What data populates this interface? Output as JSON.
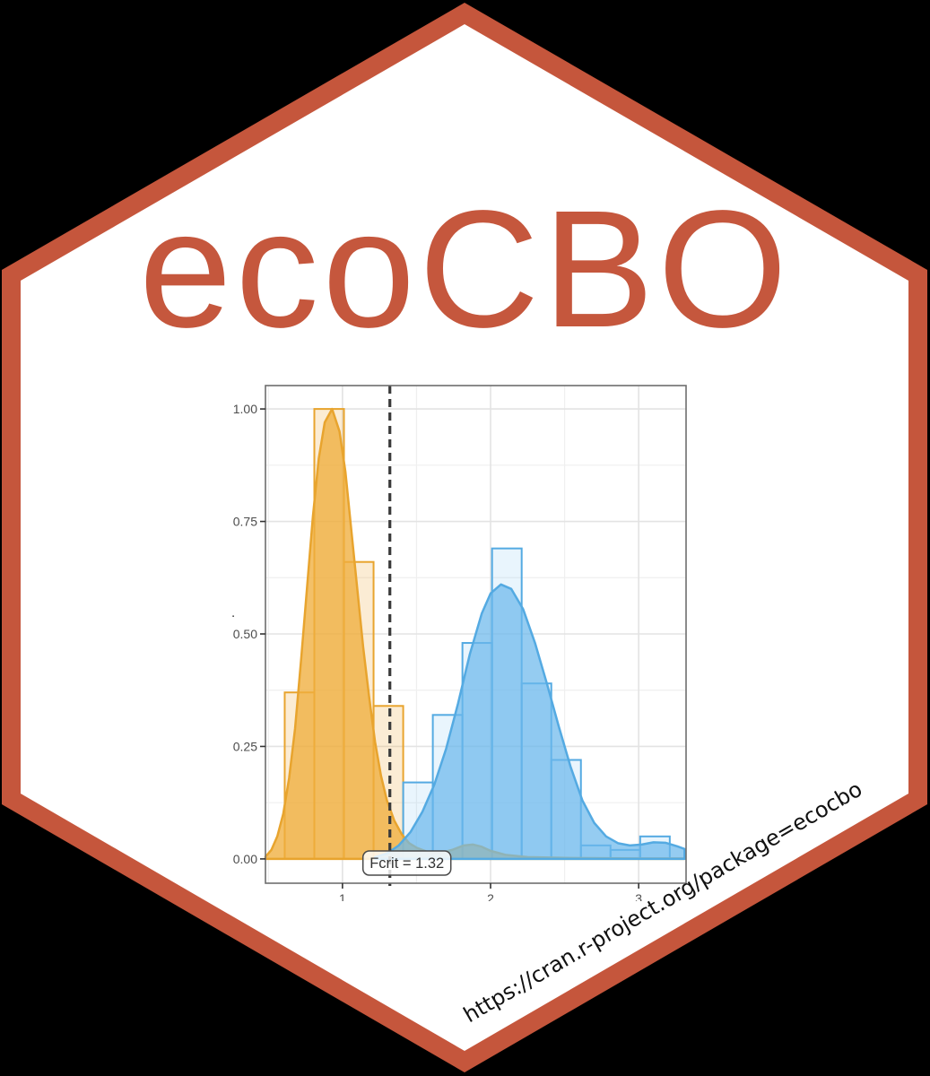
{
  "page": {
    "background": "#000000"
  },
  "hex_sticker": {
    "title": "ecoCBO",
    "url": "https://cran.r-project.org/package=ecocbo",
    "colors": {
      "border": "#C5563C",
      "fill": "#FFFFFF",
      "title": "#C5573D",
      "url_text": "#111111"
    }
  },
  "chart_data": {
    "type": "histogram",
    "title": "",
    "xlabel": "",
    "ylabel": ".",
    "x_ticks": [
      "1",
      "2",
      "3"
    ],
    "x_tick_values": [
      1,
      2,
      3
    ],
    "y_ticks": [
      "0.00",
      "0.25",
      "0.50",
      "0.75",
      "1.00"
    ],
    "y_tick_values": [
      0,
      0.25,
      0.5,
      0.75,
      1
    ],
    "x_minor": [
      0.5,
      1.5,
      2.5
    ],
    "y_minor": [
      0.125,
      0.375,
      0.625,
      0.875
    ],
    "xlim": [
      0.48,
      3.32
    ],
    "ylim": [
      -0.054,
      1.052
    ],
    "grid": true,
    "legend": "none",
    "annotation": {
      "label": "Fcrit = 1.32",
      "x": 1.32,
      "line_style": "dashed"
    },
    "colors": {
      "grid_major": "#e3e3e3",
      "grid_minor": "#efefef",
      "panel_border": "#6e6e6e",
      "axis_text": "#4d4d4d",
      "tick_mark": "#333333",
      "vline": "#3a3a3a",
      "annotation_text": "#333333",
      "annotation_border": "#4a4a4a",
      "annotation_fill": "rgba(255,255,255,0.82)"
    },
    "series": [
      {
        "name": "orange",
        "stroke": "#E8A42E",
        "bar_fill": "rgba(235,170,60,0.22)",
        "density_fill": "rgba(240,174,62,0.78)",
        "bars": [
          {
            "x0": 0.61,
            "x1": 0.81,
            "value": 0.37
          },
          {
            "x0": 0.81,
            "x1": 1.01,
            "value": 1.0
          },
          {
            "x0": 1.01,
            "x1": 1.21,
            "value": 0.66
          },
          {
            "x0": 1.21,
            "x1": 1.41,
            "value": 0.34
          }
        ],
        "density": [
          [
            0.48,
            0.005
          ],
          [
            0.52,
            0.02
          ],
          [
            0.56,
            0.05
          ],
          [
            0.6,
            0.1
          ],
          [
            0.64,
            0.18
          ],
          [
            0.68,
            0.29
          ],
          [
            0.72,
            0.44
          ],
          [
            0.76,
            0.6
          ],
          [
            0.8,
            0.76
          ],
          [
            0.84,
            0.89
          ],
          [
            0.88,
            0.97
          ],
          [
            0.93,
            1.0
          ],
          [
            0.98,
            0.95
          ],
          [
            1.02,
            0.86
          ],
          [
            1.06,
            0.73
          ],
          [
            1.1,
            0.6
          ],
          [
            1.14,
            0.47
          ],
          [
            1.18,
            0.36
          ],
          [
            1.22,
            0.26
          ],
          [
            1.26,
            0.185
          ],
          [
            1.3,
            0.13
          ],
          [
            1.35,
            0.085
          ],
          [
            1.4,
            0.055
          ],
          [
            1.45,
            0.035
          ],
          [
            1.5,
            0.025
          ],
          [
            1.58,
            0.015
          ],
          [
            1.66,
            0.013
          ],
          [
            1.74,
            0.02
          ],
          [
            1.82,
            0.03
          ],
          [
            1.88,
            0.032
          ],
          [
            1.94,
            0.027
          ],
          [
            2.0,
            0.018
          ],
          [
            2.1,
            0.009
          ],
          [
            2.25,
            0.004
          ],
          [
            2.55,
            0.002
          ],
          [
            3.0,
            0.001
          ],
          [
            3.31,
            0.001
          ]
        ]
      },
      {
        "name": "blue",
        "stroke": "#54AAE2",
        "bar_fill": "rgba(120,190,240,0.16)",
        "density_fill": "rgba(108,184,235,0.72)",
        "bars": [
          {
            "x0": 1.41,
            "x1": 1.61,
            "value": 0.17
          },
          {
            "x0": 1.61,
            "x1": 1.81,
            "value": 0.32
          },
          {
            "x0": 1.81,
            "x1": 2.01,
            "value": 0.48
          },
          {
            "x0": 2.01,
            "x1": 2.21,
            "value": 0.69
          },
          {
            "x0": 2.21,
            "x1": 2.41,
            "value": 0.39
          },
          {
            "x0": 2.41,
            "x1": 2.61,
            "value": 0.22
          },
          {
            "x0": 2.61,
            "x1": 2.81,
            "value": 0.03
          },
          {
            "x0": 2.81,
            "x1": 3.01,
            "value": 0.02
          },
          {
            "x0": 3.01,
            "x1": 3.21,
            "value": 0.05
          }
        ],
        "density": [
          [
            1.22,
            0.004
          ],
          [
            1.3,
            0.012
          ],
          [
            1.38,
            0.03
          ],
          [
            1.46,
            0.06
          ],
          [
            1.54,
            0.105
          ],
          [
            1.62,
            0.165
          ],
          [
            1.7,
            0.245
          ],
          [
            1.78,
            0.345
          ],
          [
            1.86,
            0.455
          ],
          [
            1.94,
            0.545
          ],
          [
            2.0,
            0.59
          ],
          [
            2.07,
            0.61
          ],
          [
            2.14,
            0.6
          ],
          [
            2.22,
            0.555
          ],
          [
            2.3,
            0.48
          ],
          [
            2.38,
            0.39
          ],
          [
            2.46,
            0.295
          ],
          [
            2.54,
            0.205
          ],
          [
            2.62,
            0.13
          ],
          [
            2.7,
            0.08
          ],
          [
            2.78,
            0.05
          ],
          [
            2.86,
            0.035
          ],
          [
            2.94,
            0.03
          ],
          [
            3.02,
            0.032
          ],
          [
            3.1,
            0.037
          ],
          [
            3.18,
            0.036
          ],
          [
            3.26,
            0.028
          ],
          [
            3.31,
            0.022
          ]
        ]
      }
    ]
  }
}
